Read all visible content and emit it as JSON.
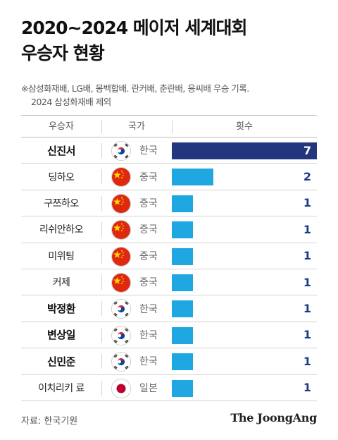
{
  "title_line1": "2020~2024 메이저 세계대회",
  "title_line2": "우승자 현황",
  "note_line1": "※삼성화재배, LG배, 몽백합배. 란커배, 춘란배, 응씨배 우승 기록.",
  "note_line2": "2024 삼성화재배 제외",
  "headers": {
    "winner": "우승자",
    "country": "국가",
    "count": "횟수"
  },
  "colors": {
    "bar_top": "#24367e",
    "bar": "#1ea7e1",
    "korea": "#cd2e3a",
    "china": "#de2910",
    "japan": "#bc002d"
  },
  "chart_data": {
    "type": "bar",
    "categories": [
      "신진서",
      "딩하오",
      "구쯔하오",
      "리쉬안하오",
      "미위팅",
      "커제",
      "박정환",
      "변상일",
      "신민준",
      "이치리키 료"
    ],
    "values": [
      7,
      2,
      1,
      1,
      1,
      1,
      1,
      1,
      1,
      1
    ],
    "xlabel": "",
    "ylabel": "",
    "xlim": [
      0,
      7
    ]
  },
  "rows": [
    {
      "name": "신진서",
      "country": "한국",
      "flag": "korea-flag-icon",
      "count": "7",
      "bold": true
    },
    {
      "name": "딩하오",
      "country": "중국",
      "flag": "china-flag-icon",
      "count": "2",
      "bold": false
    },
    {
      "name": "구쯔하오",
      "country": "중국",
      "flag": "china-flag-icon",
      "count": "1",
      "bold": false
    },
    {
      "name": "리쉬안하오",
      "country": "중국",
      "flag": "china-flag-icon",
      "count": "1",
      "bold": false
    },
    {
      "name": "미위팅",
      "country": "중국",
      "flag": "china-flag-icon",
      "count": "1",
      "bold": false
    },
    {
      "name": "커제",
      "country": "중국",
      "flag": "china-flag-icon",
      "count": "1",
      "bold": false
    },
    {
      "name": "박정환",
      "country": "한국",
      "flag": "korea-flag-icon",
      "count": "1",
      "bold": true
    },
    {
      "name": "변상일",
      "country": "한국",
      "flag": "korea-flag-icon",
      "count": "1",
      "bold": true
    },
    {
      "name": "신민준",
      "country": "한국",
      "flag": "korea-flag-icon",
      "count": "1",
      "bold": true
    },
    {
      "name": "이치리키 료",
      "country": "일본",
      "flag": "japan-flag-icon",
      "count": "1",
      "bold": false
    }
  ],
  "source": "자료: 한국기원",
  "brand": "The JoongAng"
}
